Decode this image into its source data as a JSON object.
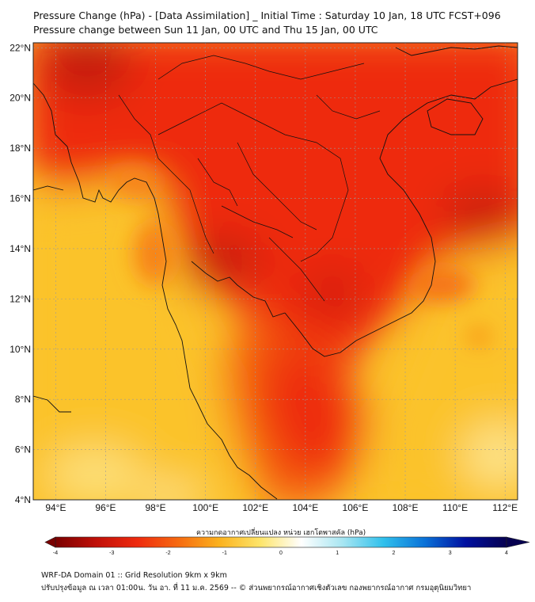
{
  "header": {
    "title_line1": "Pressure Change (hPa) - [Data Assimilation] _ Initial Time : Saturday 10 Jan, 18 UTC FCST+096",
    "title_line2": "Pressure change between Sun 11 Jan, 00 UTC and Thu 15 Jan, 00 UTC"
  },
  "map": {
    "lat_labels": [
      "22°N",
      "20°N",
      "18°N",
      "16°N",
      "14°N",
      "12°N",
      "10°N",
      "8°N",
      "6°N",
      "4°N"
    ],
    "lon_labels": [
      "94°E",
      "96°E",
      "98°E",
      "100°E",
      "102°E",
      "104°E",
      "106°E",
      "108°E",
      "110°E",
      "112°E"
    ],
    "lat_range": [
      4,
      22.2
    ],
    "lon_range": [
      93.1,
      112.5
    ],
    "field_colors": {
      "strong_neg": "#c41a0a",
      "neg": "#ee2a0e",
      "mid_neg": "#f66a10",
      "weak_neg": "#fbc32a",
      "near_zero": "#fde48a"
    }
  },
  "colorbar": {
    "label": "ความกดอากาศเปลี่ยนแปลง หน่วย เฮกโตพาสคัล (hPa)",
    "ticks": [
      "-4",
      "-3",
      "-2",
      "-1",
      "0",
      "1",
      "2",
      "3",
      "4"
    ],
    "range": [
      -4,
      4
    ],
    "colors": [
      "#7a0000",
      "#c01008",
      "#ee2a0e",
      "#f66a10",
      "#fbb21e",
      "#fde56b",
      "#ffffff",
      "#a8e6f2",
      "#30c0ec",
      "#0a72d8",
      "#0010a0",
      "#060050"
    ]
  },
  "footer": {
    "line1": "WRF-DA Domain 01 :: Grid Resolution 9km x 9km",
    "line2": "ปรับปรุงข้อมูล ณ เวลา 01:00น. วัน อา. ที่ 11 ม.ค. 2569 -- © ส่วนพยากรณ์อากาศเชิงตัวเลข กองพยากรณ์อากาศ กรมอุตุนิยมวิทยา"
  }
}
